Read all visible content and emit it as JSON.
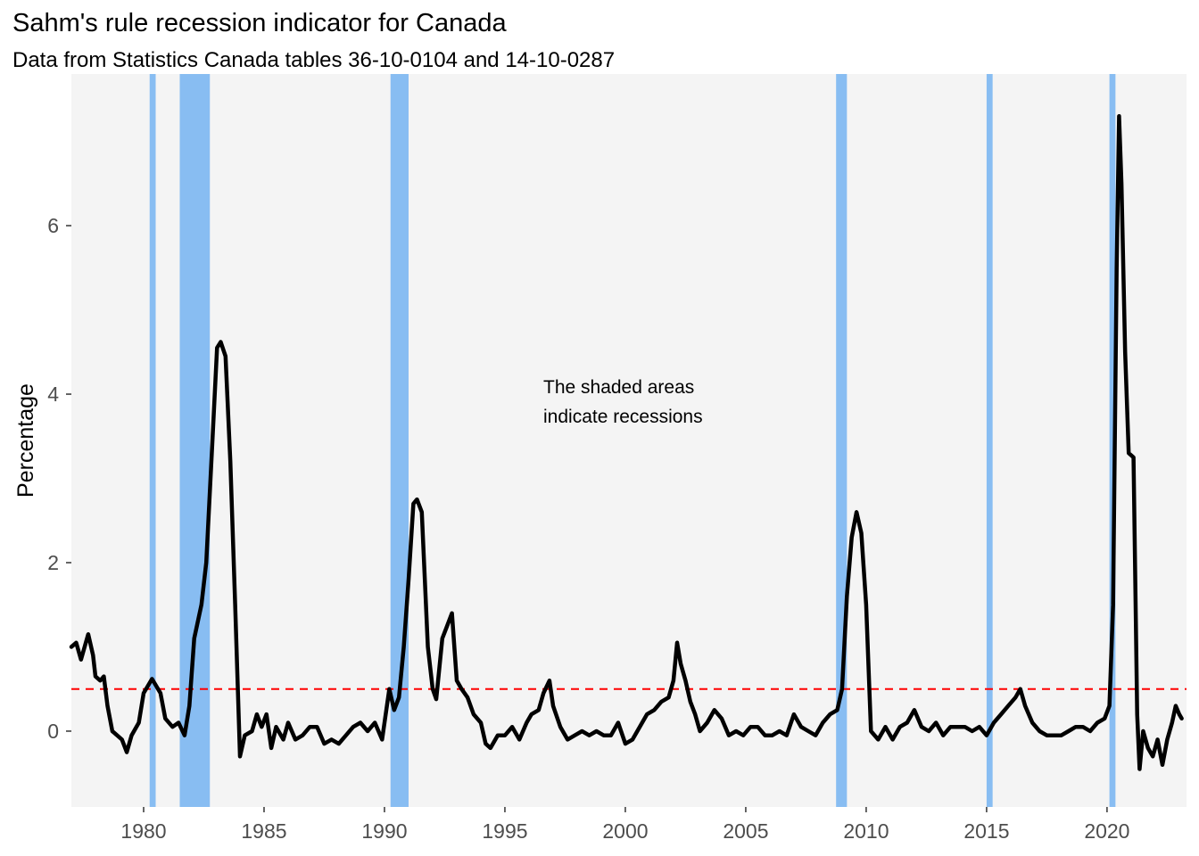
{
  "chart_data": {
    "type": "line",
    "title": "Sahm's rule recession indicator for Canada",
    "subtitle": "Data from Statistics Canada tables 36-10-0104 and 14-10-0287",
    "xlabel": "",
    "ylabel": "Percentage",
    "xlim": [
      1977.0,
      2023.3
    ],
    "ylim": [
      -0.9,
      7.8
    ],
    "x_ticks": [
      1980,
      1985,
      1990,
      1995,
      2000,
      2005,
      2010,
      2015,
      2020
    ],
    "x_tick_labels": [
      "1980",
      "1985",
      "1990",
      "1995",
      "2000",
      "2005",
      "2010",
      "2015",
      "2020"
    ],
    "y_ticks": [
      0,
      2,
      4,
      6
    ],
    "y_tick_labels": [
      "0",
      "2",
      "4",
      "6"
    ],
    "grid": false,
    "annotation_lines": [
      "The shaded areas",
      "indicate recessions"
    ],
    "threshold": 0.5,
    "recessions": [
      [
        1980.25,
        1980.5
      ],
      [
        1981.5,
        1982.75
      ],
      [
        1990.25,
        1991.0
      ],
      [
        2008.75,
        2009.2
      ],
      [
        2015.0,
        2015.25
      ],
      [
        2020.1,
        2020.35
      ]
    ],
    "series": [
      {
        "values": [
          [
            1977.0,
            1.0
          ],
          [
            1977.2,
            1.05
          ],
          [
            1977.4,
            0.85
          ],
          [
            1977.7,
            1.15
          ],
          [
            1977.9,
            0.9
          ],
          [
            1978.0,
            0.65
          ],
          [
            1978.2,
            0.6
          ],
          [
            1978.35,
            0.65
          ],
          [
            1978.5,
            0.3
          ],
          [
            1978.7,
            0.0
          ],
          [
            1978.9,
            -0.05
          ],
          [
            1979.1,
            -0.1
          ],
          [
            1979.3,
            -0.25
          ],
          [
            1979.5,
            -0.05
          ],
          [
            1979.8,
            0.1
          ],
          [
            1980.0,
            0.45
          ],
          [
            1980.35,
            0.62
          ],
          [
            1980.7,
            0.45
          ],
          [
            1980.9,
            0.15
          ],
          [
            1981.2,
            0.05
          ],
          [
            1981.45,
            0.1
          ],
          [
            1981.7,
            -0.05
          ],
          [
            1981.9,
            0.3
          ],
          [
            1982.1,
            1.1
          ],
          [
            1982.4,
            1.5
          ],
          [
            1982.6,
            2.0
          ],
          [
            1982.85,
            3.4
          ],
          [
            1983.05,
            4.55
          ],
          [
            1983.2,
            4.62
          ],
          [
            1983.4,
            4.45
          ],
          [
            1983.6,
            3.2
          ],
          [
            1983.8,
            1.5
          ],
          [
            1984.0,
            -0.3
          ],
          [
            1984.2,
            -0.05
          ],
          [
            1984.5,
            0.0
          ],
          [
            1984.7,
            0.2
          ],
          [
            1984.9,
            0.05
          ],
          [
            1985.1,
            0.2
          ],
          [
            1985.3,
            -0.2
          ],
          [
            1985.5,
            0.05
          ],
          [
            1985.8,
            -0.1
          ],
          [
            1986.0,
            0.1
          ],
          [
            1986.3,
            -0.1
          ],
          [
            1986.6,
            -0.05
          ],
          [
            1986.9,
            0.05
          ],
          [
            1987.2,
            0.05
          ],
          [
            1987.5,
            -0.15
          ],
          [
            1987.8,
            -0.1
          ],
          [
            1988.1,
            -0.15
          ],
          [
            1988.4,
            -0.05
          ],
          [
            1988.7,
            0.05
          ],
          [
            1989.0,
            0.1
          ],
          [
            1989.3,
            0.0
          ],
          [
            1989.6,
            0.1
          ],
          [
            1989.9,
            -0.1
          ],
          [
            1990.2,
            0.5
          ],
          [
            1990.4,
            0.25
          ],
          [
            1990.6,
            0.4
          ],
          [
            1990.8,
            1.0
          ],
          [
            1991.0,
            1.8
          ],
          [
            1991.2,
            2.7
          ],
          [
            1991.35,
            2.75
          ],
          [
            1991.55,
            2.6
          ],
          [
            1991.8,
            1.0
          ],
          [
            1992.0,
            0.5
          ],
          [
            1992.15,
            0.38
          ],
          [
            1992.4,
            1.1
          ],
          [
            1992.6,
            1.25
          ],
          [
            1992.8,
            1.4
          ],
          [
            1993.0,
            0.6
          ],
          [
            1993.2,
            0.5
          ],
          [
            1993.45,
            0.4
          ],
          [
            1993.7,
            0.2
          ],
          [
            1994.0,
            0.1
          ],
          [
            1994.2,
            -0.15
          ],
          [
            1994.4,
            -0.2
          ],
          [
            1994.7,
            -0.05
          ],
          [
            1995.0,
            -0.05
          ],
          [
            1995.3,
            0.05
          ],
          [
            1995.6,
            -0.1
          ],
          [
            1995.9,
            0.1
          ],
          [
            1996.1,
            0.2
          ],
          [
            1996.4,
            0.25
          ],
          [
            1996.6,
            0.45
          ],
          [
            1996.85,
            0.6
          ],
          [
            1997.0,
            0.3
          ],
          [
            1997.3,
            0.05
          ],
          [
            1997.6,
            -0.1
          ],
          [
            1997.9,
            -0.05
          ],
          [
            1998.2,
            0.0
          ],
          [
            1998.5,
            -0.05
          ],
          [
            1998.8,
            0.0
          ],
          [
            1999.1,
            -0.05
          ],
          [
            1999.4,
            -0.05
          ],
          [
            1999.7,
            0.1
          ],
          [
            2000.0,
            -0.15
          ],
          [
            2000.3,
            -0.1
          ],
          [
            2000.6,
            0.05
          ],
          [
            2000.9,
            0.2
          ],
          [
            2001.2,
            0.25
          ],
          [
            2001.5,
            0.35
          ],
          [
            2001.8,
            0.4
          ],
          [
            2002.0,
            0.6
          ],
          [
            2002.15,
            1.05
          ],
          [
            2002.3,
            0.8
          ],
          [
            2002.5,
            0.6
          ],
          [
            2002.7,
            0.35
          ],
          [
            2002.9,
            0.2
          ],
          [
            2003.1,
            0.0
          ],
          [
            2003.4,
            0.1
          ],
          [
            2003.7,
            0.25
          ],
          [
            2004.0,
            0.15
          ],
          [
            2004.3,
            -0.05
          ],
          [
            2004.6,
            0.0
          ],
          [
            2004.9,
            -0.05
          ],
          [
            2005.2,
            0.05
          ],
          [
            2005.5,
            0.05
          ],
          [
            2005.8,
            -0.05
          ],
          [
            2006.1,
            -0.05
          ],
          [
            2006.4,
            0.0
          ],
          [
            2006.7,
            -0.05
          ],
          [
            2007.0,
            0.2
          ],
          [
            2007.3,
            0.05
          ],
          [
            2007.6,
            0.0
          ],
          [
            2007.9,
            -0.05
          ],
          [
            2008.2,
            0.1
          ],
          [
            2008.5,
            0.2
          ],
          [
            2008.8,
            0.25
          ],
          [
            2009.0,
            0.5
          ],
          [
            2009.2,
            1.6
          ],
          [
            2009.4,
            2.3
          ],
          [
            2009.6,
            2.6
          ],
          [
            2009.8,
            2.35
          ],
          [
            2010.0,
            1.5
          ],
          [
            2010.2,
            0.0
          ],
          [
            2010.5,
            -0.1
          ],
          [
            2010.8,
            0.05
          ],
          [
            2011.1,
            -0.1
          ],
          [
            2011.4,
            0.05
          ],
          [
            2011.7,
            0.1
          ],
          [
            2012.0,
            0.25
          ],
          [
            2012.3,
            0.05
          ],
          [
            2012.6,
            0.0
          ],
          [
            2012.9,
            0.1
          ],
          [
            2013.2,
            -0.05
          ],
          [
            2013.5,
            0.05
          ],
          [
            2013.8,
            0.05
          ],
          [
            2014.1,
            0.05
          ],
          [
            2014.4,
            0.0
          ],
          [
            2014.7,
            0.05
          ],
          [
            2015.0,
            -0.05
          ],
          [
            2015.3,
            0.1
          ],
          [
            2015.6,
            0.2
          ],
          [
            2015.9,
            0.3
          ],
          [
            2016.2,
            0.4
          ],
          [
            2016.4,
            0.5
          ],
          [
            2016.6,
            0.3
          ],
          [
            2016.9,
            0.1
          ],
          [
            2017.2,
            0.0
          ],
          [
            2017.5,
            -0.05
          ],
          [
            2017.8,
            -0.05
          ],
          [
            2018.1,
            -0.05
          ],
          [
            2018.4,
            0.0
          ],
          [
            2018.7,
            0.05
          ],
          [
            2019.0,
            0.05
          ],
          [
            2019.3,
            0.0
          ],
          [
            2019.6,
            0.1
          ],
          [
            2019.9,
            0.15
          ],
          [
            2020.1,
            0.3
          ],
          [
            2020.25,
            1.5
          ],
          [
            2020.4,
            5.5
          ],
          [
            2020.5,
            7.3
          ],
          [
            2020.6,
            6.5
          ],
          [
            2020.75,
            4.5
          ],
          [
            2020.9,
            3.3
          ],
          [
            2021.1,
            3.25
          ],
          [
            2021.25,
            0.2
          ],
          [
            2021.35,
            -0.45
          ],
          [
            2021.5,
            0.0
          ],
          [
            2021.7,
            -0.2
          ],
          [
            2021.9,
            -0.3
          ],
          [
            2022.1,
            -0.1
          ],
          [
            2022.3,
            -0.4
          ],
          [
            2022.5,
            -0.1
          ],
          [
            2022.7,
            0.1
          ],
          [
            2022.85,
            0.3
          ],
          [
            2023.0,
            0.2
          ],
          [
            2023.1,
            0.15
          ]
        ]
      }
    ]
  }
}
